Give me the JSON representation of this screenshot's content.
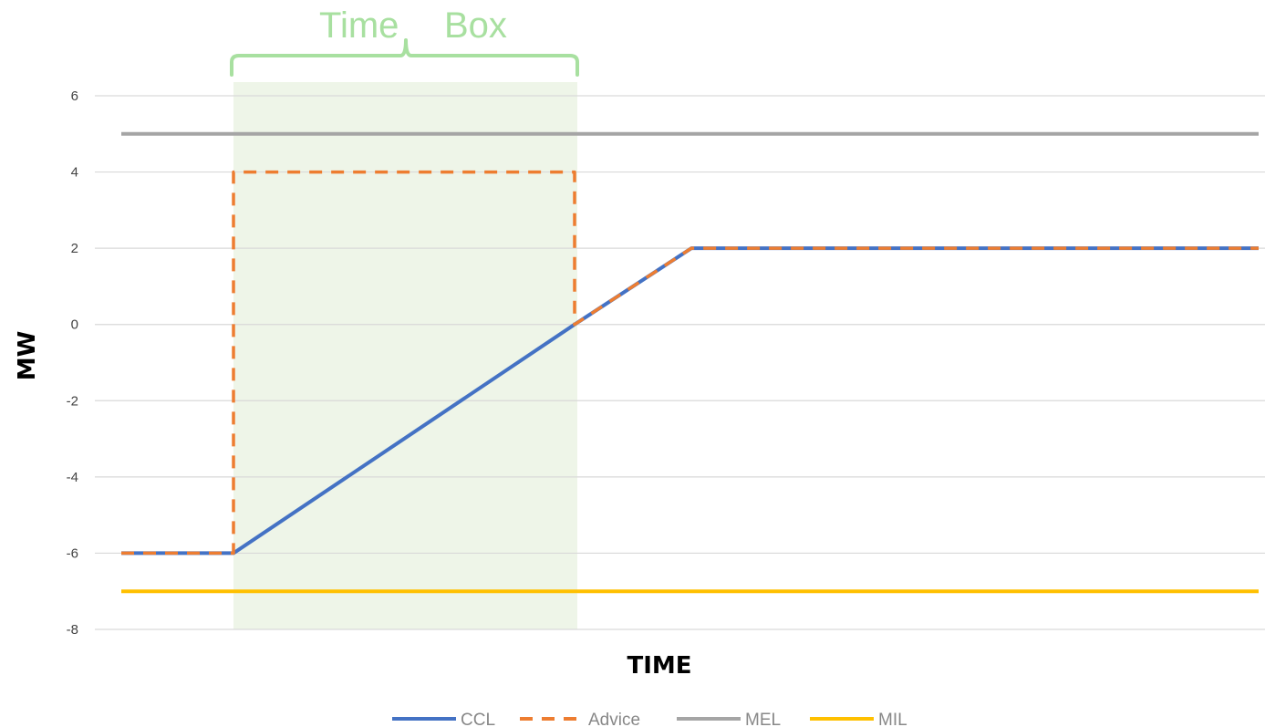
{
  "chart_data": {
    "type": "line",
    "title": "",
    "xlabel": "TIME",
    "ylabel": "MW",
    "ylim": [
      -8,
      6
    ],
    "yticks": [
      6,
      4,
      2,
      0,
      -2,
      -4,
      -6,
      -8
    ],
    "grid": true,
    "legend_position": "bottom",
    "time_box": {
      "label_left": "Time",
      "label_right": "Box",
      "x_range": [
        1,
        4
      ],
      "color": "#a8e0a0",
      "fill": "#eef5e8"
    },
    "series": [
      {
        "name": "CCL",
        "style": "solid",
        "color": "#4472c4",
        "x": [
          0,
          1,
          4,
          5,
          10
        ],
        "y": [
          -6,
          -6,
          0,
          2,
          2
        ]
      },
      {
        "name": "Advice",
        "style": "dashed",
        "color": "#ed7d31",
        "x": [
          0,
          1,
          1,
          4,
          4,
          5,
          10
        ],
        "y": [
          -6,
          -6,
          4,
          4,
          0,
          2,
          2
        ]
      },
      {
        "name": "MEL",
        "style": "solid",
        "color": "#a5a5a5",
        "x": [
          0,
          10
        ],
        "y": [
          5,
          5
        ]
      },
      {
        "name": "MIL",
        "style": "solid",
        "color": "#ffc000",
        "x": [
          0,
          10
        ],
        "y": [
          -7,
          -7
        ]
      }
    ],
    "xlim": [
      0,
      10
    ]
  }
}
